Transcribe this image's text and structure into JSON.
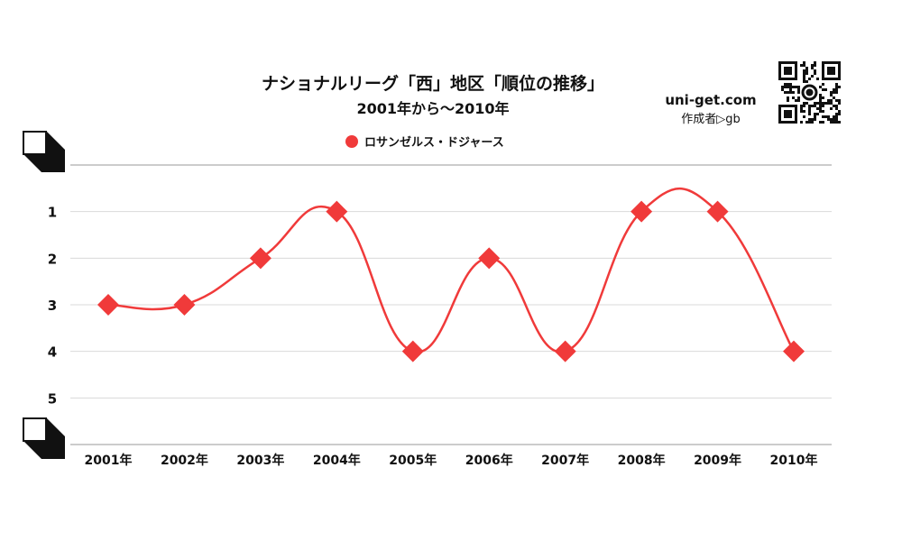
{
  "chart_data": {
    "type": "line",
    "title": "ナショナルリーグ「西」地区「順位の推移」",
    "subtitle": "2001年から～2010年",
    "categories": [
      "2001年",
      "2002年",
      "2003年",
      "2004年",
      "2005年",
      "2006年",
      "2007年",
      "2008年",
      "2009年",
      "2010年"
    ],
    "series": [
      {
        "name": "ロサンゼルス・ドジャース",
        "values": [
          3,
          3,
          2,
          1,
          4,
          2,
          4,
          1,
          1,
          4
        ],
        "color": "#f03a3a",
        "marker": "diamond"
      }
    ],
    "y_ticks": [
      "1",
      "2",
      "3",
      "4",
      "5"
    ],
    "ylim": [
      0,
      6
    ],
    "y_inverted": true,
    "grid": true,
    "legend": "top-center"
  },
  "branding": {
    "site": "uni-get.com",
    "credit": "作成者▷gb"
  }
}
